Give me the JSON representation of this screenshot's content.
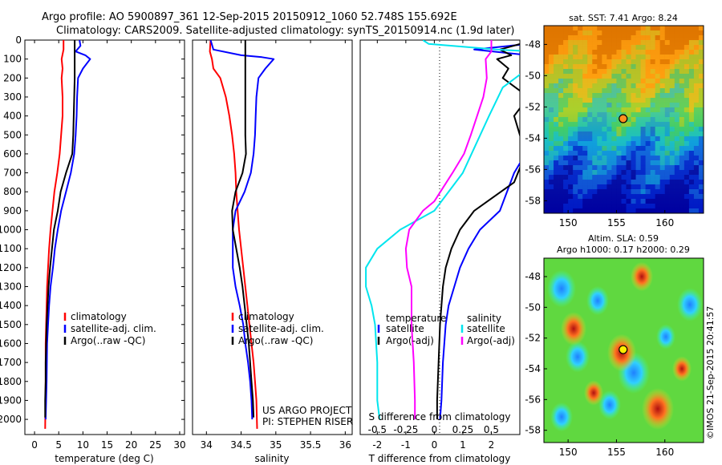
{
  "header": {
    "line1": "Argo profile: AO 5900897_361 12-Sep-2015 20150912_1060 52.748S 155.692E",
    "line2": "Climatology: CARS2009. Satellite-adjusted climatology: synTS_20150914.nc (1.9d later)"
  },
  "colors": {
    "climatology": "#ff0000",
    "satellite": "#0000ff",
    "argo": "#000000",
    "sat_salinity": "#00e5ee",
    "argo_salinity": "#ff00ff"
  },
  "chart_data": [
    {
      "type": "line",
      "id": "temperature",
      "xlabel": "temperature (deg C)",
      "ylabel": "",
      "xlim": [
        -2,
        31
      ],
      "ylim": [
        2080,
        0
      ],
      "xticks": [
        0,
        5,
        10,
        15,
        20,
        25,
        30
      ],
      "yticks": [
        0,
        100,
        200,
        300,
        400,
        500,
        600,
        700,
        800,
        900,
        1000,
        1100,
        1200,
        1300,
        1400,
        1500,
        1600,
        1700,
        1800,
        1900,
        2000
      ],
      "legend": [
        "climatology",
        "satellite-adj. clim.",
        "Argo(..raw -QC)"
      ],
      "series": [
        {
          "name": "climatology",
          "color": "#ff0000",
          "points": [
            [
              6.0,
              0
            ],
            [
              6.0,
              50
            ],
            [
              5.6,
              100
            ],
            [
              5.8,
              150
            ],
            [
              5.6,
              200
            ],
            [
              5.8,
              300
            ],
            [
              5.8,
              400
            ],
            [
              5.5,
              500
            ],
            [
              5.2,
              600
            ],
            [
              4.7,
              700
            ],
            [
              4.1,
              800
            ],
            [
              3.7,
              900
            ],
            [
              3.3,
              1000
            ],
            [
              3.0,
              1100
            ],
            [
              2.8,
              1200
            ],
            [
              2.6,
              1300
            ],
            [
              2.5,
              1400
            ],
            [
              2.4,
              1500
            ],
            [
              2.3,
              1600
            ],
            [
              2.3,
              1800
            ],
            [
              2.2,
              2050
            ]
          ]
        },
        {
          "name": "satellite-adj. clim.",
          "color": "#0000ff",
          "points": [
            [
              9.3,
              0
            ],
            [
              9.5,
              30
            ],
            [
              8.5,
              60
            ],
            [
              10.5,
              80
            ],
            [
              11.5,
              100
            ],
            [
              10.0,
              150
            ],
            [
              9.0,
              200
            ],
            [
              8.8,
              300
            ],
            [
              8.7,
              400
            ],
            [
              8.5,
              500
            ],
            [
              8.2,
              600
            ],
            [
              7.5,
              700
            ],
            [
              6.5,
              800
            ],
            [
              5.5,
              900
            ],
            [
              4.8,
              1000
            ],
            [
              4.2,
              1100
            ],
            [
              3.8,
              1200
            ],
            [
              3.3,
              1300
            ],
            [
              3.0,
              1400
            ],
            [
              2.8,
              1500
            ],
            [
              2.6,
              1600
            ],
            [
              2.5,
              1800
            ],
            [
              2.3,
              2000
            ]
          ]
        },
        {
          "name": "Argo(..raw -QC)",
          "color": "#000000",
          "points": [
            [
              8.3,
              0
            ],
            [
              8.3,
              100
            ],
            [
              8.3,
              200
            ],
            [
              8.2,
              300
            ],
            [
              8.1,
              400
            ],
            [
              8.0,
              500
            ],
            [
              7.8,
              600
            ],
            [
              6.5,
              700
            ],
            [
              5.4,
              800
            ],
            [
              4.8,
              900
            ],
            [
              4.0,
              1000
            ],
            [
              3.6,
              1100
            ],
            [
              3.2,
              1200
            ],
            [
              2.9,
              1300
            ],
            [
              2.7,
              1400
            ],
            [
              2.5,
              1500
            ],
            [
              2.4,
              1600
            ],
            [
              2.3,
              1700
            ],
            [
              2.3,
              1800
            ],
            [
              2.2,
              1900
            ],
            [
              2.2,
              1990
            ]
          ]
        }
      ]
    },
    {
      "type": "line",
      "id": "salinity",
      "xlabel": "salinity",
      "ylabel": "",
      "xlim": [
        33.8,
        36.1
      ],
      "ylim": [
        2080,
        0
      ],
      "xticks": [
        34,
        34.5,
        35,
        35.5,
        36
      ],
      "legend": [
        "climatology",
        "satellite-adj. clim.",
        "Argo(..raw -QC)"
      ],
      "annotation": [
        "US ARGO PROJECT",
        "PI: STEPHEN RISER"
      ],
      "series": [
        {
          "name": "climatology",
          "color": "#ff0000",
          "points": [
            [
              34.06,
              0
            ],
            [
              34.05,
              60
            ],
            [
              34.08,
              100
            ],
            [
              34.1,
              150
            ],
            [
              34.2,
              200
            ],
            [
              34.28,
              300
            ],
            [
              34.33,
              400
            ],
            [
              34.37,
              500
            ],
            [
              34.4,
              600
            ],
            [
              34.42,
              700
            ],
            [
              34.43,
              800
            ],
            [
              34.45,
              900
            ],
            [
              34.47,
              1000
            ],
            [
              34.5,
              1100
            ],
            [
              34.53,
              1200
            ],
            [
              34.56,
              1300
            ],
            [
              34.59,
              1400
            ],
            [
              34.62,
              1500
            ],
            [
              34.65,
              1600
            ],
            [
              34.68,
              1700
            ],
            [
              34.7,
              1800
            ],
            [
              34.72,
              1900
            ],
            [
              34.73,
              2050
            ]
          ]
        },
        {
          "name": "satellite-adj. clim.",
          "color": "#0000ff",
          "points": [
            [
              34.06,
              0
            ],
            [
              34.1,
              50
            ],
            [
              34.5,
              80
            ],
            [
              34.8,
              90
            ],
            [
              34.97,
              100
            ],
            [
              34.85,
              150
            ],
            [
              34.75,
              200
            ],
            [
              34.72,
              300
            ],
            [
              34.71,
              400
            ],
            [
              34.7,
              500
            ],
            [
              34.68,
              600
            ],
            [
              34.64,
              700
            ],
            [
              34.55,
              800
            ],
            [
              34.42,
              900
            ],
            [
              34.38,
              1000
            ],
            [
              34.38,
              1100
            ],
            [
              34.38,
              1200
            ],
            [
              34.42,
              1300
            ],
            [
              34.48,
              1400
            ],
            [
              34.53,
              1500
            ],
            [
              34.56,
              1600
            ],
            [
              34.6,
              1700
            ],
            [
              34.63,
              1800
            ],
            [
              34.65,
              1900
            ],
            [
              34.66,
              2000
            ]
          ]
        },
        {
          "name": "Argo(..raw -QC)",
          "color": "#000000",
          "points": [
            [
              34.56,
              0
            ],
            [
              34.56,
              100
            ],
            [
              34.56,
              200
            ],
            [
              34.56,
              300
            ],
            [
              34.56,
              400
            ],
            [
              34.56,
              500
            ],
            [
              34.57,
              600
            ],
            [
              34.52,
              700
            ],
            [
              34.42,
              800
            ],
            [
              34.37,
              900
            ],
            [
              34.38,
              1000
            ],
            [
              34.43,
              1100
            ],
            [
              34.48,
              1200
            ],
            [
              34.52,
              1300
            ],
            [
              34.55,
              1400
            ],
            [
              34.58,
              1500
            ],
            [
              34.61,
              1600
            ],
            [
              34.63,
              1700
            ],
            [
              34.65,
              1800
            ],
            [
              34.67,
              1900
            ],
            [
              34.68,
              1990
            ]
          ]
        }
      ]
    },
    {
      "type": "line",
      "id": "difference",
      "xlabel": "T difference from climatology",
      "xlabel_top": "S difference from climatology",
      "ylabel": "",
      "xlim": [
        -2.6,
        3.0
      ],
      "ylim": [
        2080,
        0
      ],
      "xticks": [
        -2,
        -1,
        0,
        1,
        2
      ],
      "xticks_secondary": [
        -0.5,
        -0.25,
        0,
        0.25,
        0.5
      ],
      "legend_temperature_title": "temperature",
      "legend_salinity_title": "salinity",
      "legend_temperature": [
        "satellite",
        "Argo(-adj)"
      ],
      "legend_salinity": [
        "satellite",
        "Argo(-adj)"
      ],
      "series": [
        {
          "name": "satellite",
          "group": "temperature",
          "color": "#0000ff",
          "points": [
            [
              3.3,
              20
            ],
            [
              1.4,
              50
            ],
            [
              3.3,
              80
            ],
            [
              4.0,
              150
            ],
            [
              3.6,
              300
            ],
            [
              3.5,
              500
            ],
            [
              3.2,
              600
            ],
            [
              2.8,
              700
            ],
            [
              2.3,
              900
            ],
            [
              1.6,
              1000
            ],
            [
              1.2,
              1100
            ],
            [
              0.9,
              1200
            ],
            [
              0.7,
              1300
            ],
            [
              0.5,
              1400
            ],
            [
              0.4,
              1500
            ],
            [
              0.3,
              1700
            ],
            [
              0.25,
              1900
            ],
            [
              0.2,
              2000
            ]
          ]
        },
        {
          "name": "Argo(-adj)",
          "group": "temperature",
          "color": "#000000",
          "points": [
            [
              3.5,
              0
            ],
            [
              2.3,
              50
            ],
            [
              2.7,
              80
            ],
            [
              2.2,
              100
            ],
            [
              2.6,
              150
            ],
            [
              2.4,
              200
            ],
            [
              3.3,
              300
            ],
            [
              2.8,
              400
            ],
            [
              3.2,
              600
            ],
            [
              2.8,
              750
            ],
            [
              1.4,
              900
            ],
            [
              0.9,
              1000
            ],
            [
              0.6,
              1100
            ],
            [
              0.4,
              1200
            ],
            [
              0.3,
              1300
            ],
            [
              0.25,
              1400
            ],
            [
              0.2,
              1500
            ],
            [
              0.15,
              1700
            ],
            [
              0.1,
              1900
            ],
            [
              0.1,
              2000
            ]
          ]
        },
        {
          "name": "satellite",
          "group": "salinity",
          "color": "#00e5ee",
          "points": [
            [
              -0.1,
              0
            ],
            [
              -0.05,
              20
            ],
            [
              0.55,
              50
            ],
            [
              0.85,
              60
            ],
            [
              1.0,
              80
            ],
            [
              0.9,
              120
            ],
            [
              0.8,
              160
            ],
            [
              0.6,
              250
            ],
            [
              0.48,
              400
            ],
            [
              0.25,
              700
            ],
            [
              0.0,
              900
            ],
            [
              -0.3,
              1000
            ],
            [
              -0.5,
              1100
            ],
            [
              -0.6,
              1200
            ],
            [
              -0.6,
              1300
            ],
            [
              -0.55,
              1400
            ],
            [
              -0.52,
              1500
            ],
            [
              -0.5,
              1700
            ],
            [
              -0.5,
              1900
            ],
            [
              -0.48,
              2000
            ]
          ]
        },
        {
          "name": "Argo(-adj)",
          "group": "salinity",
          "color": "#ff00ff",
          "points": [
            [
              0.5,
              0
            ],
            [
              0.5,
              60
            ],
            [
              0.45,
              100
            ],
            [
              0.46,
              200
            ],
            [
              0.43,
              300
            ],
            [
              0.32,
              500
            ],
            [
              0.26,
              600
            ],
            [
              0.16,
              700
            ],
            [
              0.0,
              850
            ],
            [
              -0.1,
              900
            ],
            [
              -0.22,
              1000
            ],
            [
              -0.25,
              1100
            ],
            [
              -0.24,
              1200
            ],
            [
              -0.2,
              1300
            ],
            [
              -0.2,
              1500
            ],
            [
              -0.18,
              1700
            ],
            [
              -0.17,
              1900
            ],
            [
              -0.17,
              2000
            ]
          ]
        }
      ]
    },
    {
      "type": "heatmap",
      "id": "sst-map",
      "title": "sat. SST: 7.41  Argo: 8.24",
      "xticks": [
        150,
        155,
        160
      ],
      "yticks": [
        -48,
        -50,
        -52,
        -54,
        -56,
        -58
      ],
      "xlim": [
        147.5,
        164
      ],
      "ylim": [
        -58.8,
        -46.8
      ],
      "marker": {
        "lon": 155.69,
        "lat": -52.75
      },
      "colormap": "jet"
    },
    {
      "type": "heatmap",
      "id": "sla-map",
      "title": "Altim. SLA: 0.59",
      "subtitle": "Argo h1000: 0.17  h2000: 0.29",
      "xticks": [
        150,
        155,
        160
      ],
      "yticks": [
        -48,
        -50,
        -52,
        -54,
        -56,
        -58
      ],
      "xlim": [
        147.5,
        164
      ],
      "ylim": [
        -58.8,
        -46.8
      ],
      "marker": {
        "lon": 155.69,
        "lat": -52.75
      },
      "colormap": "jet"
    }
  ],
  "footer": {
    "credit": "©IMOS 21-Sep-2015 20:41:57"
  }
}
